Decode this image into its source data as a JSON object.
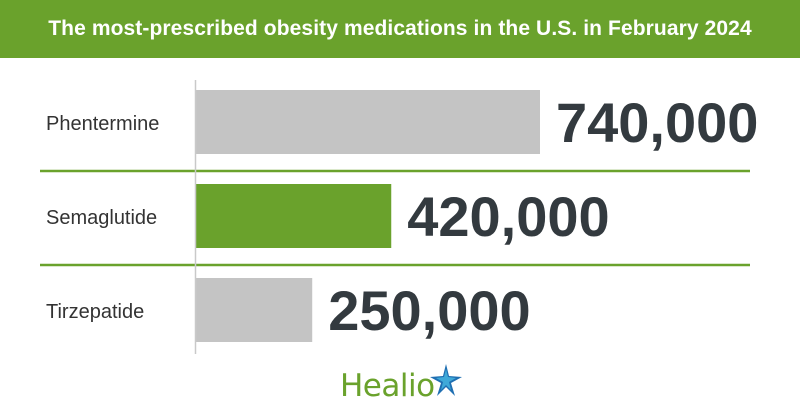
{
  "header": {
    "title": "The most-prescribed obesity medications in the U.S. in February 2024"
  },
  "chart_data": {
    "type": "bar",
    "orientation": "horizontal",
    "title": "The most-prescribed obesity medications in the U.S. in February 2024",
    "categories": [
      "Phentermine",
      "Semaglutide",
      "Tirzepatide"
    ],
    "values": [
      740000,
      420000,
      250000
    ],
    "value_labels": [
      "740,000",
      "420,000",
      "250,000"
    ],
    "bar_colors": [
      "#c4c4c4",
      "#6aa22c",
      "#c4c4c4"
    ],
    "xlim": [
      0,
      740000
    ],
    "grid": false,
    "legend": "none"
  },
  "colors": {
    "accent": "#6aa22c",
    "bar_default": "#c4c4c4",
    "value_text": "#333a3f",
    "label_text": "#333333"
  },
  "logo": {
    "text": "Healio",
    "icon": "star-icon"
  }
}
